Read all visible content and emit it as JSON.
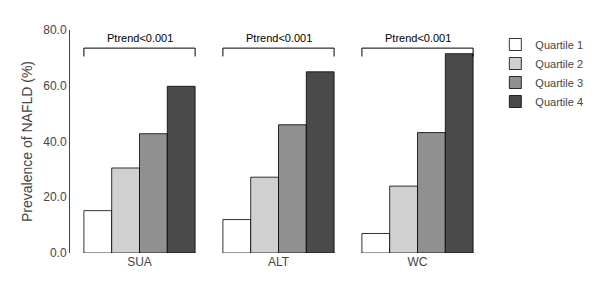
{
  "chart_data": {
    "type": "bar",
    "ylabel": "Prevalence of NAFLD (%)",
    "categories": [
      "SUA",
      "ALT",
      "WC"
    ],
    "series": [
      {
        "name": "Quartile 1",
        "color": "#ffffff",
        "values": [
          15.2,
          12.0,
          7.0
        ]
      },
      {
        "name": "Quartile 2",
        "color": "#d0d0d0",
        "values": [
          30.5,
          27.2,
          24.0
        ]
      },
      {
        "name": "Quartile 3",
        "color": "#909090",
        "values": [
          42.8,
          46.0,
          43.2
        ]
      },
      {
        "name": "Quartile 4",
        "color": "#4a4a4a",
        "values": [
          59.8,
          65.0,
          71.5
        ]
      }
    ],
    "ylim": [
      0,
      80
    ],
    "yticks": [
      {
        "value": 0,
        "label": "0.0"
      },
      {
        "value": 20,
        "label": "20.0"
      },
      {
        "value": 40,
        "label": "40.0"
      },
      {
        "value": 60,
        "label": "60.0"
      },
      {
        "value": 80,
        "label": "80.0"
      }
    ],
    "grid": false,
    "legend": "right",
    "brackets": [
      {
        "category": "SUA",
        "y": 73.5,
        "drop": 3.0,
        "text": "Ptrend<0.001"
      },
      {
        "category": "ALT",
        "y": 73.5,
        "drop": 3.0,
        "text": "Ptrend<0.001"
      },
      {
        "category": "WC",
        "y": 73.5,
        "drop": 3.0,
        "text": "Ptrend<0.001"
      }
    ]
  }
}
